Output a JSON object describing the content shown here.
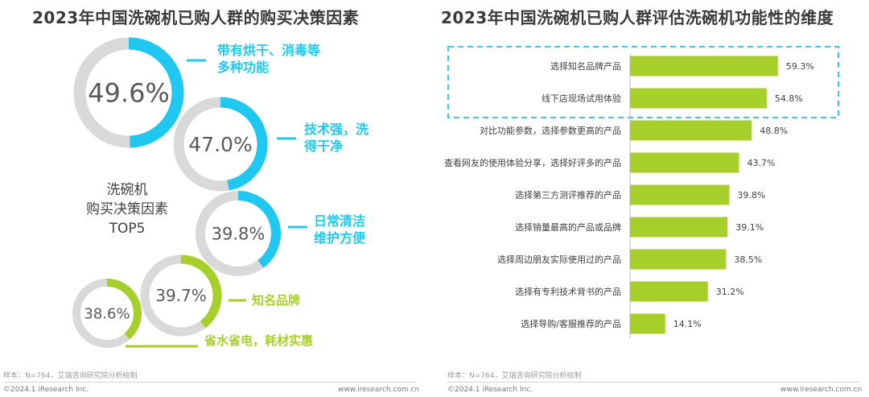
{
  "colors": {
    "blue": "#1ec8f0",
    "green": "#a6cf2a",
    "ring_bg": "#d9d9d9",
    "center_text": "#595959",
    "label_text": "#404040",
    "dash": "#3ec6e6"
  },
  "chart_data": [
    {
      "type": "pie",
      "title": "2023年中国洗碗机已购人群的购买决策因素",
      "center_label": [
        "洗碗机",
        "购买决策因素",
        "TOP5"
      ],
      "slices": [
        {
          "value_text": "49.6%",
          "value": 49.6,
          "label": [
            "带有烘干、消毒等",
            "多种功能"
          ],
          "color": "blue"
        },
        {
          "value_text": "47.0%",
          "value": 47.0,
          "label": [
            "技术强，洗",
            "得干净"
          ],
          "color": "blue"
        },
        {
          "value_text": "39.8%",
          "value": 39.8,
          "label": [
            "日常清洁",
            "维护方便"
          ],
          "color": "blue"
        },
        {
          "value_text": "39.7%",
          "value": 39.7,
          "label": [
            "知名品牌"
          ],
          "color": "green"
        },
        {
          "value_text": "38.6%",
          "value": 38.6,
          "label": [
            "省水省电，耗材实惠"
          ],
          "color": "green"
        }
      ]
    },
    {
      "type": "bar",
      "orientation": "horizontal",
      "title": "2023年中国洗碗机已购人群评估洗碗机功能性的维度",
      "categories": [
        "选择知名品牌产品",
        "线下店现场试用体验",
        "对比功能参数，选择参数更高的产品",
        "查看网友的使用体验分享，选择好评多的产品",
        "选择第三方测评推荐的产品",
        "选择销量最高的产品或品牌",
        "选择周边朋友实际使用过的产品",
        "选择有专利技术背书的产品",
        "选择导购/客服推荐的产品"
      ],
      "values": [
        59.3,
        54.8,
        48.8,
        43.7,
        39.8,
        39.1,
        38.5,
        31.2,
        14.1
      ],
      "value_labels": [
        "59.3%",
        "54.8%",
        "48.8%",
        "43.7%",
        "39.8%",
        "39.1%",
        "38.5%",
        "31.2%",
        "14.1%"
      ],
      "highlighted": [
        0,
        1
      ],
      "xlim": [
        0,
        70
      ],
      "color": "green"
    }
  ],
  "footer": {
    "sample": "样本：N=764，艾瑞咨询研究院分析绘制",
    "copyright": "©2024.1 iResearch Inc.",
    "website": "www.iresearch.com.cn"
  }
}
